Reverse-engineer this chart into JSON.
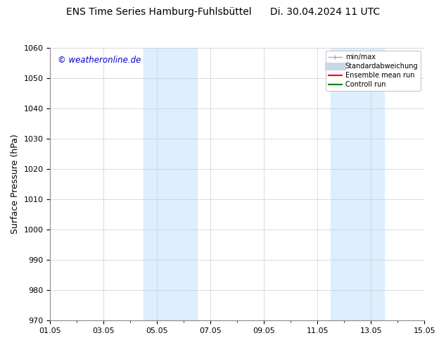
{
  "title": "ENS Time Series Hamburg-Fuhlsbüttel      Di. 30.04.2024 11 UTC",
  "title_left": "ENS Time Series Hamburg-Fuhlsbüttel",
  "title_right": "Di. 30.04.2024 11 UTC",
  "ylabel": "Surface Pressure (hPa)",
  "ylim": [
    970,
    1060
  ],
  "yticks": [
    970,
    980,
    990,
    1000,
    1010,
    1020,
    1030,
    1040,
    1050,
    1060
  ],
  "xlim": [
    0,
    14
  ],
  "xtick_labels": [
    "01.05",
    "03.05",
    "05.05",
    "07.05",
    "09.05",
    "11.05",
    "13.05",
    "15.05"
  ],
  "xtick_positions": [
    0,
    2,
    4,
    6,
    8,
    10,
    12,
    14
  ],
  "shaded_bands": [
    {
      "x_start": 3.5,
      "x_end": 5.5,
      "color": "#ddeeff",
      "alpha": 1.0
    },
    {
      "x_start": 10.5,
      "x_end": 12.5,
      "color": "#ddeeff",
      "alpha": 1.0
    }
  ],
  "watermark_text": "© weatheronline.de",
  "watermark_color": "#0000cc",
  "legend_entries": [
    {
      "label": "min/max",
      "color": "#aaaaaa",
      "linestyle": "-",
      "linewidth": 1.0,
      "type": "errorbar"
    },
    {
      "label": "Standardabweichung",
      "color": "#c8d8e8",
      "linestyle": "-",
      "linewidth": 8
    },
    {
      "label": "Ensemble mean run",
      "color": "red",
      "linestyle": "-",
      "linewidth": 1.5
    },
    {
      "label": "Controll run",
      "color": "green",
      "linestyle": "-",
      "linewidth": 1.5
    }
  ],
  "bg_color": "#ffffff",
  "grid_color": "#cccccc",
  "title_fontsize": 10,
  "label_fontsize": 9,
  "tick_fontsize": 8
}
